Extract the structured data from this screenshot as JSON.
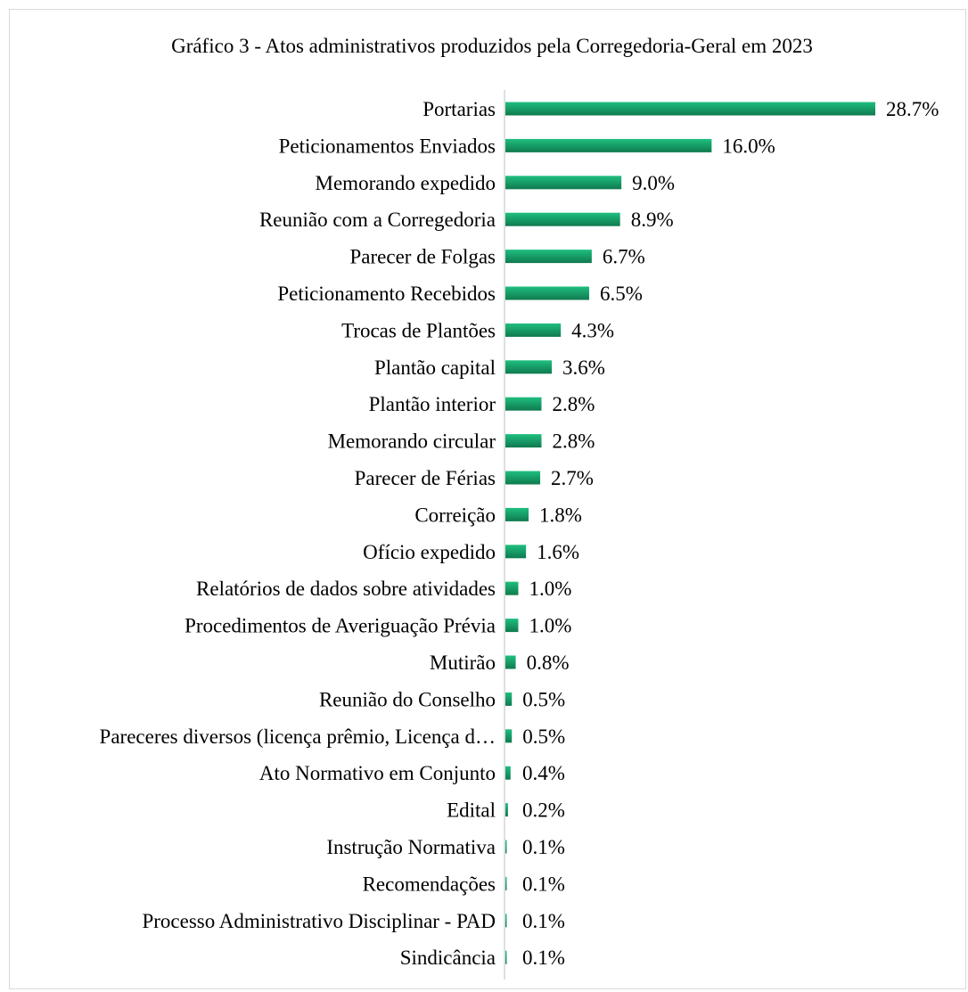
{
  "colors": {
    "bar_light": "#1fbf7f",
    "bar_dark": "#0f7a4e",
    "axis": "#bfbfbf",
    "frame_border": "#d9d9d9",
    "text": "#000000"
  },
  "chart_data": {
    "type": "bar",
    "orientation": "horizontal",
    "title": "Gráfico 3 - Atos administrativos produzidos pela Corregedoria-Geral em 2023",
    "xlabel": "",
    "ylabel": "",
    "grid": false,
    "legend": "none",
    "value_unit": "%",
    "xlim": [
      0,
      28.7
    ],
    "categories": [
      "Portarias",
      "Peticionamentos Enviados",
      "Memorando expedido",
      "Reunião com a Corregedoria",
      "Parecer de Folgas",
      "Peticionamento Recebidos",
      "Trocas de Plantões",
      "Plantão capital",
      "Plantão interior",
      "Memorando circular",
      "Parecer de Férias",
      "Correição",
      "Ofício expedido",
      "Relatórios de dados sobre atividades",
      "Procedimentos de Averiguação Prévia",
      "Mutirão",
      "Reunião do Conselho",
      "Pareceres diversos (licença prêmio, Licença d…",
      "Ato Normativo em Conjunto",
      "Edital",
      "Instrução Normativa",
      "Recomendações",
      "Processo Administrativo Disciplinar - PAD",
      "Sindicância"
    ],
    "values": [
      28.7,
      16.0,
      9.0,
      8.9,
      6.7,
      6.5,
      4.3,
      3.6,
      2.8,
      2.8,
      2.7,
      1.8,
      1.6,
      1.0,
      1.0,
      0.8,
      0.5,
      0.5,
      0.4,
      0.2,
      0.1,
      0.1,
      0.1,
      0.1
    ],
    "value_labels": [
      "28.7%",
      "16.0%",
      "9.0%",
      "8.9%",
      "6.7%",
      "6.5%",
      "4.3%",
      "3.6%",
      "2.8%",
      "2.8%",
      "2.7%",
      "1.8%",
      "1.6%",
      "1.0%",
      "1.0%",
      "0.8%",
      "0.5%",
      "0.5%",
      "0.4%",
      "0.2%",
      "0.1%",
      "0.1%",
      "0.1%",
      "0.1%"
    ]
  }
}
